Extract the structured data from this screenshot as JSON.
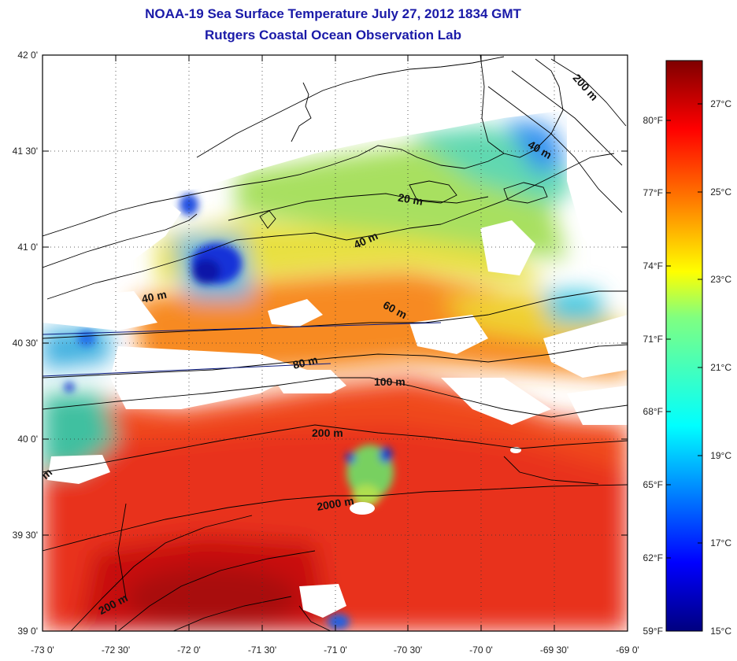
{
  "header": {
    "title": "NOAA-19 Sea Surface Temperature July 27, 2012 1834 GMT",
    "subtitle": "Rutgers Coastal Ocean Observation Lab"
  },
  "map": {
    "lon_labels": [
      "-73 0'",
      "-72 30'",
      "-72 0'",
      "-71 30'",
      "-71 0'",
      "-70 30'",
      "-70 0'",
      "-69 30'",
      "-69 0'"
    ],
    "lat_labels": [
      "42 0'",
      "41 30'",
      "41 0'",
      "40 30'",
      "40 0'",
      "39 30'",
      "39 0'"
    ],
    "depth_labels": [
      "200 m",
      "40 m",
      "20 m",
      "40 m",
      "40 m",
      "60 m",
      "80 m",
      "100 m",
      "200 m",
      "2000 m",
      "200 m",
      "m"
    ]
  },
  "colorbar": {
    "fahrenheit_labels": [
      "80°F",
      "77°F",
      "74°F",
      "71°F",
      "68°F",
      "65°F",
      "62°F",
      "59°F"
    ],
    "celsius_labels": [
      "27°C",
      "25°C",
      "23°C",
      "21°C",
      "19°C",
      "17°C",
      "15°C"
    ],
    "colors": [
      "#00007f",
      "#0000ff",
      "#0080ff",
      "#00ffff",
      "#80ff80",
      "#ffff00",
      "#ff8000",
      "#ff0000",
      "#7f0000"
    ]
  }
}
